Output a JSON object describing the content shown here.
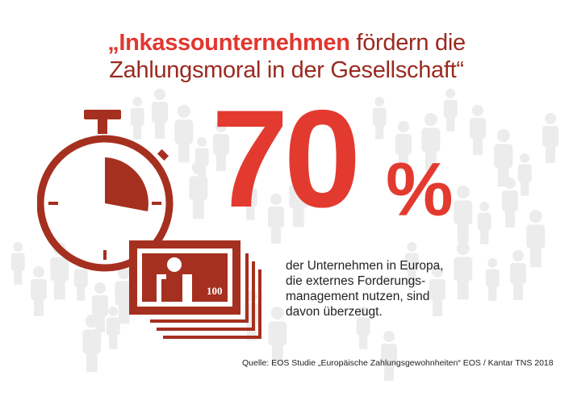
{
  "headline": {
    "part1": "„Inkassounternehmen",
    "part2": " fördern die",
    "line2": "Zahlungsmoral in der Gesellschaft“"
  },
  "stat": {
    "value": "70",
    "unit": "%"
  },
  "description": [
    "der Unternehmen in Europa,",
    "die externes Forderungs-",
    "management nutzen, sind",
    "davon überzeugt."
  ],
  "banknote_value": "100",
  "source": "Quelle: EOS Studie „Europäische Zahlungsgewohnheiten“ EOS / Kantar TNS 2018",
  "colors": {
    "accent_red": "#e2362f",
    "dark_red": "#9a2a20",
    "icon_red": "#a5301f",
    "people_gray": "#ececec",
    "text": "#222222"
  },
  "icons": [
    "stopwatch-icon",
    "banknote-stack-icon",
    "people-crowd-background"
  ]
}
